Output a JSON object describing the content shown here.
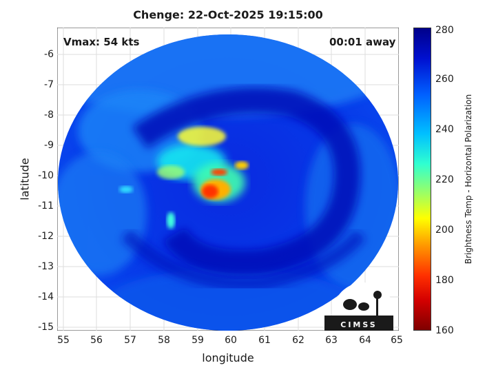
{
  "title": "Chenge: 22-Oct-2025 19:15:00",
  "overlays": {
    "vmax": "Vmax: 54 kts",
    "away": "00:01 away"
  },
  "axes": {
    "xlabel": "longitude",
    "ylabel": "latitude",
    "xticks": [
      "55",
      "56",
      "57",
      "58",
      "59",
      "60",
      "61",
      "62",
      "63",
      "64",
      "65"
    ],
    "yticks": [
      "-6",
      "-7",
      "-8",
      "-9",
      "-10",
      "-11",
      "-12",
      "-13",
      "-14",
      "-15"
    ],
    "xlim": [
      54.9,
      65.1
    ],
    "ylim": [
      -15.1,
      -5.1
    ]
  },
  "colorbar": {
    "label": "Brightness Temp - Horizontal Polarization",
    "ticks": [
      "280",
      "260",
      "240",
      "220",
      "200",
      "180",
      "160"
    ],
    "range": [
      160,
      280
    ]
  },
  "logo": {
    "text": "CIMSS"
  },
  "colors": {
    "cold_core": "#ff2000",
    "warm_background": "#0014c8"
  }
}
